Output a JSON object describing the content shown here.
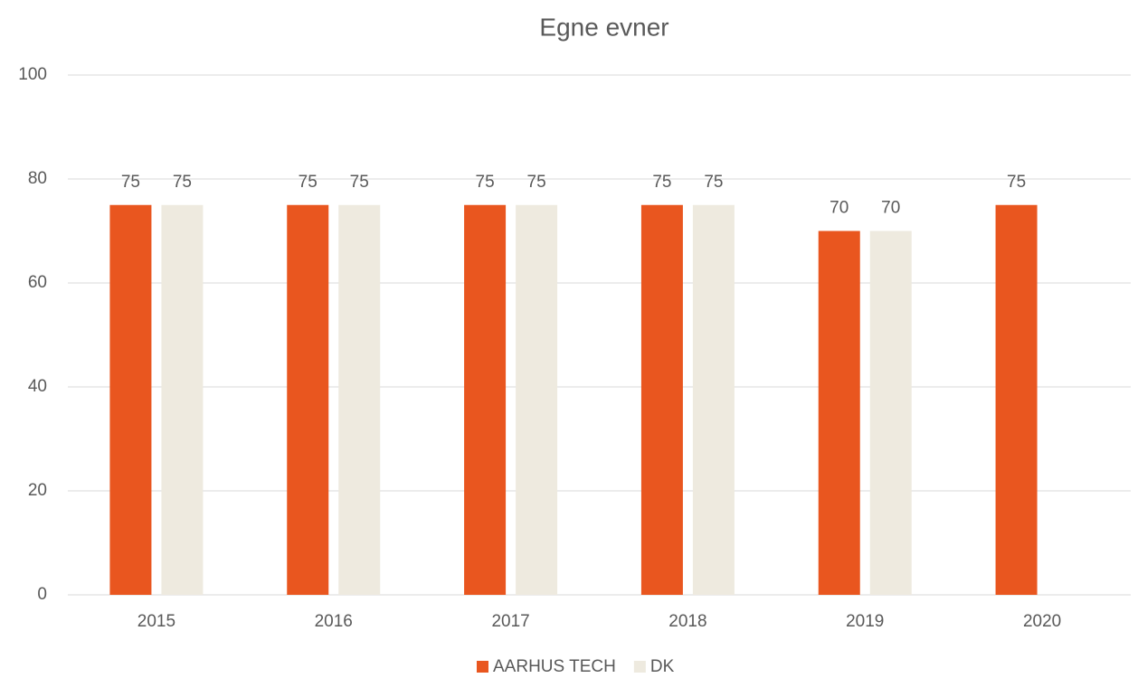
{
  "chart_data": {
    "type": "bar",
    "title": "Egne evner",
    "categories": [
      "2015",
      "2016",
      "2017",
      "2018",
      "2019",
      "2020"
    ],
    "series": [
      {
        "name": "AARHUS TECH",
        "color": "#e9561f",
        "values": [
          75,
          75,
          75,
          75,
          70,
          75
        ]
      },
      {
        "name": "DK",
        "color": "#eeeadf",
        "values": [
          75,
          75,
          75,
          75,
          70,
          null
        ]
      }
    ],
    "ylim": [
      0,
      100
    ],
    "yticks": [
      0,
      20,
      40,
      60,
      80,
      100
    ],
    "grid": true,
    "legend": "bottom"
  }
}
